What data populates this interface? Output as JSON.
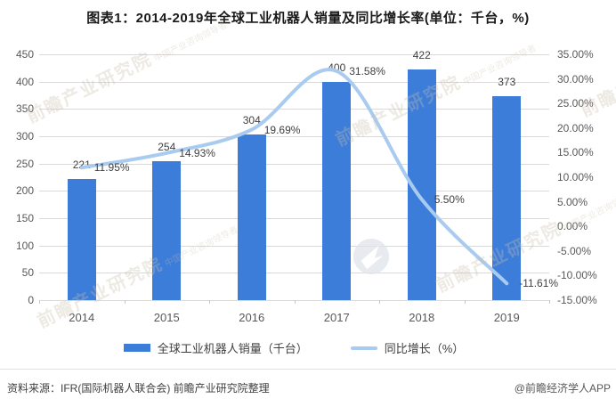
{
  "title": "图表1：2014-2019年全球工业机器人销量及同比增长率(单位：千台，%)",
  "chart_data": {
    "type": "bar",
    "subtype": "combo-bar-line-dual-axis",
    "categories": [
      "2014",
      "2015",
      "2016",
      "2017",
      "2018",
      "2019"
    ],
    "series": [
      {
        "name": "全球工业机器人销量（千台）",
        "type": "bar",
        "axis": "left",
        "values": [
          221,
          254,
          304,
          400,
          422,
          373
        ],
        "labels": [
          "221",
          "254",
          "304",
          "400",
          "422",
          "373"
        ],
        "color": "#3d7dda"
      },
      {
        "name": "同比增长（%）",
        "type": "line",
        "axis": "right",
        "values": [
          11.95,
          14.93,
          19.69,
          31.58,
          5.5,
          -11.61
        ],
        "labels": [
          "11.95%",
          "14.93%",
          "19.69%",
          "31.58%",
          "5.50%",
          "-11.61%"
        ],
        "color": "#a9cbf0"
      }
    ],
    "left_axis": {
      "min": 0,
      "max": 450,
      "step": 50,
      "ticks": [
        "450",
        "400",
        "350",
        "300",
        "250",
        "200",
        "150",
        "100",
        "50",
        "0"
      ]
    },
    "right_axis": {
      "min": -15,
      "max": 35,
      "step": 5,
      "ticks": [
        "35.00%",
        "30.00%",
        "25.00%",
        "20.00%",
        "15.00%",
        "10.00%",
        "5.00%",
        "0.00%",
        "-5.00%",
        "-10.00%",
        "-15.00%"
      ]
    },
    "grid": true,
    "gridline_color": "#d9d9d9",
    "legend_position": "bottom"
  },
  "footer": {
    "source": "资料来源：IFR(国际机器人联合会) 前瞻产业研究院整理",
    "credit": "@前瞻经济学人APP"
  },
  "watermark": {
    "text": "前瞻产业研究院",
    "subtext": "中国产业咨询领导者"
  }
}
